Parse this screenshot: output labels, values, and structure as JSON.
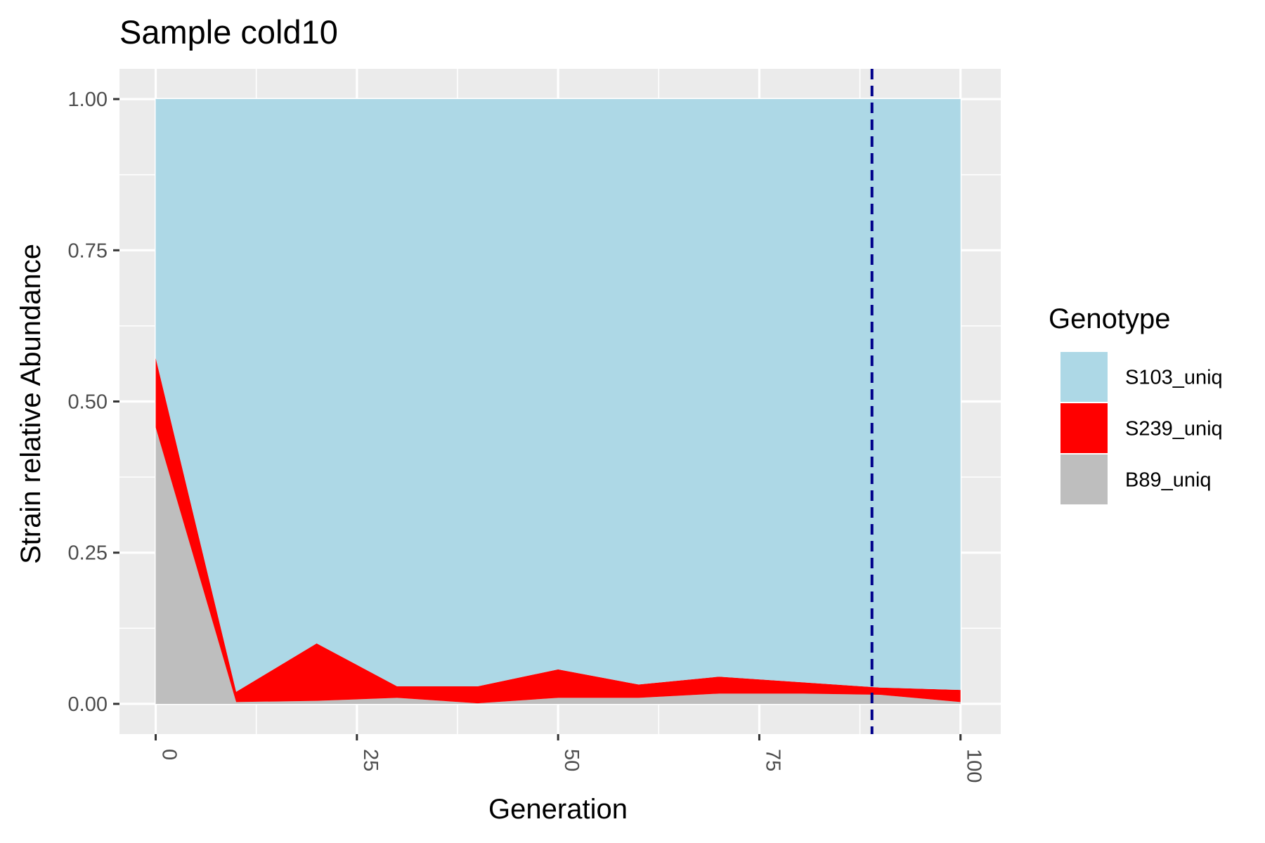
{
  "chart_data": {
    "type": "area",
    "title": "Sample cold10",
    "xlabel": "Generation",
    "ylabel": "Strain relative Abundance",
    "xlim": [
      -4.5,
      105
    ],
    "ylim": [
      -0.05,
      1.05
    ],
    "x": [
      0,
      10,
      20,
      30,
      40,
      50,
      60,
      70,
      80,
      90,
      100
    ],
    "x_ticks": [
      "0",
      "25",
      "50",
      "75",
      "100"
    ],
    "y_ticks": [
      "0.00",
      "0.25",
      "0.50",
      "0.75",
      "1.00"
    ],
    "stacked": true,
    "grid": true,
    "series": [
      {
        "name": "B89_uniq",
        "color": "#bebebe",
        "values": [
          0.457,
          0.003,
          0.005,
          0.01,
          0.001,
          0.01,
          0.01,
          0.017,
          0.017,
          0.015,
          0.003
        ]
      },
      {
        "name": "S239_uniq",
        "color": "#ff0000",
        "values": [
          0.115,
          0.017,
          0.095,
          0.019,
          0.028,
          0.047,
          0.022,
          0.028,
          0.019,
          0.012,
          0.02
        ]
      },
      {
        "name": "S103_uniq",
        "color": "#add8e6",
        "values": [
          0.428,
          0.98,
          0.9,
          0.971,
          0.971,
          0.943,
          0.968,
          0.955,
          0.964,
          0.973,
          0.977
        ]
      }
    ],
    "vline": {
      "x": 89,
      "color": "#00008b",
      "style": "dashed"
    },
    "legend": {
      "title": "Genotype",
      "position": "right",
      "entries": [
        {
          "label": "S103_uniq",
          "color": "#add8e6"
        },
        {
          "label": "S239_uniq",
          "color": "#ff0000"
        },
        {
          "label": "B89_uniq",
          "color": "#bebebe"
        }
      ]
    },
    "panel_background": "#ebebeb",
    "grid_color": "#ffffff"
  }
}
